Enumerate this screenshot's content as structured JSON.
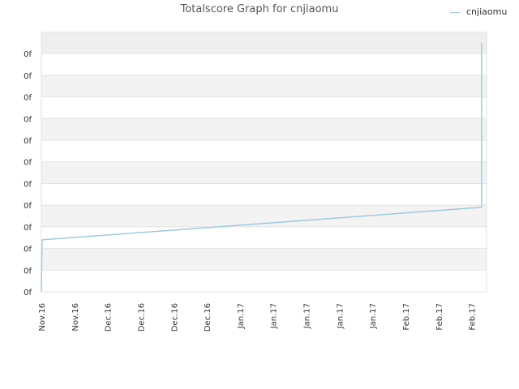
{
  "chart_data": {
    "type": "line",
    "title": "Totalscore Graph for cnjiaomu",
    "xlabel": "",
    "ylabel": "",
    "x_tick_labels": [
      "Nov.16",
      "Nov.16",
      "Dec.16",
      "Dec.16",
      "Dec.16",
      "Dec.16",
      "Jan.17",
      "Jan.17",
      "Jan.17",
      "Jan.17",
      "Jan.17",
      "Feb.17",
      "Feb.17",
      "Feb.17"
    ],
    "y_tick_labels": [
      "0f",
      "0f",
      "0f",
      "0f",
      "0f",
      "0f",
      "0f",
      "0f",
      "0f",
      "0f",
      "0f",
      "0f"
    ],
    "grid": true,
    "legend_position": "top-right",
    "series": [
      {
        "name": "cnjiaomu",
        "color": "#9ecae1",
        "x": [
          0.0,
          0.02,
          13.3,
          13.3
        ],
        "y": [
          0.0,
          2.4,
          3.9,
          11.5
        ]
      }
    ],
    "xlim": [
      0,
      13.45
    ],
    "ylim": [
      0,
      11.98
    ]
  }
}
